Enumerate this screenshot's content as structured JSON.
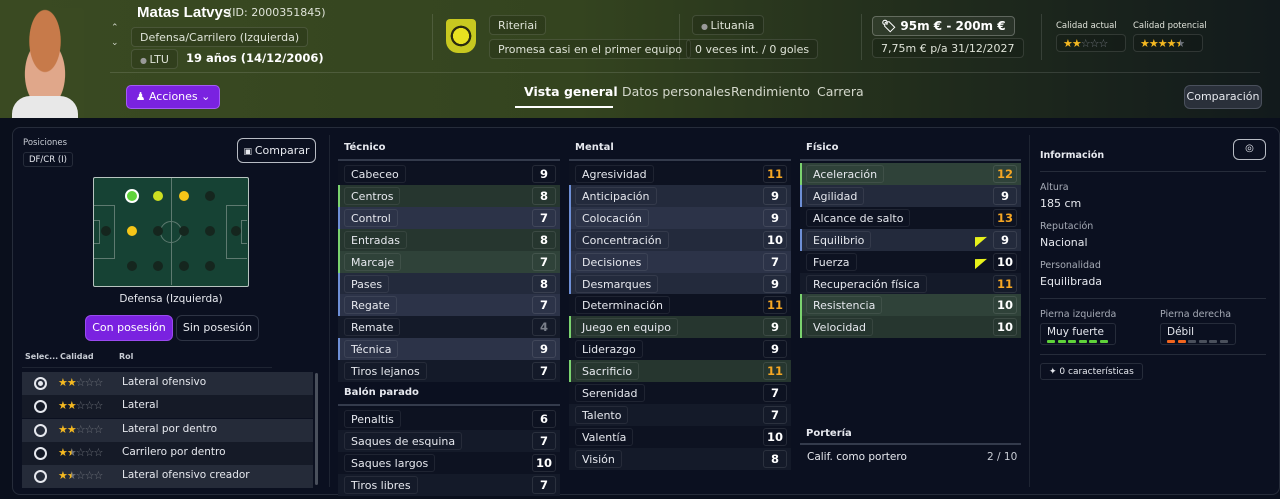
{
  "player": {
    "name": "Matas Latvys",
    "id": "(ID: 2000351845)",
    "position": "Defensa/Carrilero (Izquierda)",
    "nation_code": "LTU",
    "age": "19 años (14/12/2006)",
    "actions_label": "Acciones"
  },
  "club": {
    "name": "Riteriai",
    "status": "Promesa casi en el primer equipo"
  },
  "nation": {
    "name": "Lituania",
    "caps": "0 veces int. / 0 goles"
  },
  "value": {
    "range": "95m € - 200m €",
    "wage": "7,75m € p/a",
    "contract_end": "31/12/2027"
  },
  "quality": {
    "current_label": "Calidad actual",
    "current_stars": 2,
    "potential_label": "Calidad potencial",
    "potential_stars": 4.5
  },
  "tabs": [
    {
      "label": "Vista general",
      "active": true
    },
    {
      "label": "Datos personales"
    },
    {
      "label": "Rendimiento"
    },
    {
      "label": "Carrera"
    }
  ],
  "compare_button": "Comparación",
  "positions": {
    "label": "Posiciones",
    "badge": "DF/CR (I)",
    "compare_label": "Comparar",
    "selected_position": "Defensa (Izquierda)",
    "toggle_on": "Con posesión",
    "toggle_off": "Sin posesión"
  },
  "roles": {
    "headers": [
      "Selec...",
      "Calidad",
      "Rol"
    ],
    "items": [
      {
        "name": "Lateral ofensivo",
        "stars": 2,
        "selected": true
      },
      {
        "name": "Lateral",
        "stars": 2
      },
      {
        "name": "Lateral por dentro",
        "stars": 2
      },
      {
        "name": "Carrilero por dentro",
        "stars": 1.5
      },
      {
        "name": "Lateral ofensivo creador",
        "stars": 1.5
      }
    ]
  },
  "attributes": {
    "tecnico": {
      "title": "Técnico",
      "items": [
        {
          "name": "Cabeceo",
          "value": 9,
          "hl": ""
        },
        {
          "name": "Centros",
          "value": 8,
          "hl": "green"
        },
        {
          "name": "Control",
          "value": 7,
          "hl": "blue"
        },
        {
          "name": "Entradas",
          "value": 8,
          "hl": "green"
        },
        {
          "name": "Marcaje",
          "value": 7,
          "hl": "green"
        },
        {
          "name": "Pases",
          "value": 8,
          "hl": "blue"
        },
        {
          "name": "Regate",
          "value": 7,
          "hl": "blue"
        },
        {
          "name": "Remate",
          "value": 4,
          "hl": ""
        },
        {
          "name": "Técnica",
          "value": 9,
          "hl": "blue"
        },
        {
          "name": "Tiros lejanos",
          "value": 7,
          "hl": ""
        }
      ]
    },
    "balon_parado": {
      "title": "Balón parado",
      "items": [
        {
          "name": "Penaltis",
          "value": 6,
          "hl": ""
        },
        {
          "name": "Saques de esquina",
          "value": 7,
          "hl": ""
        },
        {
          "name": "Saques largos",
          "value": 10,
          "hl": ""
        },
        {
          "name": "Tiros libres",
          "value": 7,
          "hl": ""
        }
      ]
    },
    "mental": {
      "title": "Mental",
      "items": [
        {
          "name": "Agresividad",
          "value": 11,
          "hl": ""
        },
        {
          "name": "Anticipación",
          "value": 9,
          "hl": "blue"
        },
        {
          "name": "Colocación",
          "value": 9,
          "hl": "blue"
        },
        {
          "name": "Concentración",
          "value": 10,
          "hl": "blue"
        },
        {
          "name": "Decisiones",
          "value": 7,
          "hl": "blue"
        },
        {
          "name": "Desmarques",
          "value": 9,
          "hl": "blue"
        },
        {
          "name": "Determinación",
          "value": 11,
          "hl": ""
        },
        {
          "name": "Juego en equipo",
          "value": 9,
          "hl": "green"
        },
        {
          "name": "Liderazgo",
          "value": 9,
          "hl": ""
        },
        {
          "name": "Sacrificio",
          "value": 11,
          "hl": "green"
        },
        {
          "name": "Serenidad",
          "value": 7,
          "hl": ""
        },
        {
          "name": "Talento",
          "value": 7,
          "hl": ""
        },
        {
          "name": "Valentía",
          "value": 10,
          "hl": ""
        },
        {
          "name": "Visión",
          "value": 8,
          "hl": ""
        }
      ]
    },
    "fisico": {
      "title": "Físico",
      "items": [
        {
          "name": "Aceleración",
          "value": 12,
          "hl": "green"
        },
        {
          "name": "Agilidad",
          "value": 9,
          "hl": "blue"
        },
        {
          "name": "Alcance de salto",
          "value": 13,
          "hl": ""
        },
        {
          "name": "Equilibrio",
          "value": 9,
          "hl": "blue",
          "trend": "up"
        },
        {
          "name": "Fuerza",
          "value": 10,
          "hl": "",
          "trend": "up"
        },
        {
          "name": "Recuperación física",
          "value": 11,
          "hl": ""
        },
        {
          "name": "Resistencia",
          "value": 10,
          "hl": "green"
        },
        {
          "name": "Velocidad",
          "value": 10,
          "hl": "green"
        }
      ]
    },
    "porteria": {
      "title": "Portería",
      "label": "Calif. como portero",
      "value": "2 / 10"
    }
  },
  "info": {
    "title": "Información",
    "height_label": "Altura",
    "height": "185 cm",
    "reputation_label": "Reputación",
    "reputation": "Nacional",
    "personality_label": "Personalidad",
    "personality": "Equilibrada",
    "left_foot_label": "Pierna izquierda",
    "left_foot": "Muy fuerte",
    "left_foot_level": 6,
    "right_foot_label": "Pierna derecha",
    "right_foot": "Débil",
    "right_foot_level": 2,
    "traits": "0 características"
  },
  "colors": {
    "accent": "#7a22e0",
    "high_value": "#f5a623",
    "key_attr": "#7bd36f",
    "pref_attr": "#6e8fd6"
  }
}
